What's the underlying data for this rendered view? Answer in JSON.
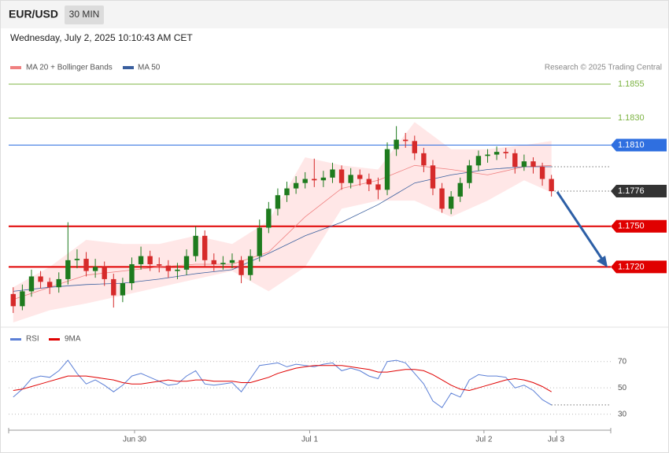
{
  "chart_data": {
    "type": "candlestick",
    "title": "EUR/USD",
    "interval": "30 MIN",
    "subtitle": "Wednesday, July 2, 2025 10:10:43 AM CET",
    "copyright": "Research © 2025 Trading Central",
    "xlim": [
      -0.5,
      65.5
    ],
    "xticks": [
      {
        "value": 13.3,
        "label": "Jun 30"
      },
      {
        "value": 32.5,
        "label": "Jul 1"
      },
      {
        "value": 51.6,
        "label": "Jul 2"
      },
      {
        "value": 59.5,
        "label": "Jul 3"
      }
    ],
    "ylim": [
      1.1679,
      1.1862
    ],
    "up_color": "#1e7b1e",
    "down_color": "#d62a2a",
    "candles": [
      [
        1.17,
        1.1705,
        1.1686,
        1.1691
      ],
      [
        1.1691,
        1.1707,
        1.1688,
        1.1702
      ],
      [
        1.1702,
        1.1718,
        1.1698,
        1.1713
      ],
      [
        1.1713,
        1.1717,
        1.1704,
        1.1709
      ],
      [
        1.1709,
        1.1712,
        1.17,
        1.1705
      ],
      [
        1.1705,
        1.1716,
        1.1701,
        1.1711
      ],
      [
        1.1711,
        1.1753,
        1.1707,
        1.1725
      ],
      [
        1.1725,
        1.1733,
        1.1719,
        1.1726
      ],
      [
        1.1726,
        1.1731,
        1.1713,
        1.1717
      ],
      [
        1.1717,
        1.1726,
        1.1712,
        1.172
      ],
      [
        1.172,
        1.1724,
        1.1706,
        1.1711
      ],
      [
        1.1711,
        1.1715,
        1.169,
        1.1699
      ],
      [
        1.1699,
        1.1712,
        1.1694,
        1.1708
      ],
      [
        1.1708,
        1.1727,
        1.1703,
        1.1722
      ],
      [
        1.1722,
        1.1735,
        1.1718,
        1.1728
      ],
      [
        1.1728,
        1.1732,
        1.1717,
        1.1722
      ],
      [
        1.1722,
        1.1727,
        1.1716,
        1.1721
      ],
      [
        1.1721,
        1.1725,
        1.1712,
        1.1717
      ],
      [
        1.1717,
        1.1723,
        1.1711,
        1.1718
      ],
      [
        1.1718,
        1.1733,
        1.1714,
        1.1728
      ],
      [
        1.1728,
        1.175,
        1.1724,
        1.1743
      ],
      [
        1.1743,
        1.1747,
        1.172,
        1.1725
      ],
      [
        1.1725,
        1.173,
        1.1717,
        1.1722
      ],
      [
        1.1722,
        1.1728,
        1.1718,
        1.1723
      ],
      [
        1.1723,
        1.173,
        1.1719,
        1.1725
      ],
      [
        1.1725,
        1.1728,
        1.1708,
        1.1714
      ],
      [
        1.1714,
        1.1733,
        1.171,
        1.1728
      ],
      [
        1.1728,
        1.1755,
        1.1724,
        1.1749
      ],
      [
        1.1749,
        1.1768,
        1.1745,
        1.1763
      ],
      [
        1.1763,
        1.1778,
        1.1758,
        1.1773
      ],
      [
        1.1773,
        1.1783,
        1.1768,
        1.1778
      ],
      [
        1.1778,
        1.1787,
        1.1774,
        1.1782
      ],
      [
        1.1782,
        1.179,
        1.1778,
        1.1785
      ],
      [
        1.1785,
        1.18,
        1.1779,
        1.1784
      ],
      [
        1.1784,
        1.1791,
        1.1779,
        1.1786
      ],
      [
        1.1786,
        1.1797,
        1.1782,
        1.1792
      ],
      [
        1.1792,
        1.1795,
        1.1777,
        1.1782
      ],
      [
        1.1782,
        1.1793,
        1.1778,
        1.1788
      ],
      [
        1.1788,
        1.1792,
        1.178,
        1.1785
      ],
      [
        1.1785,
        1.1789,
        1.1776,
        1.1781
      ],
      [
        1.1781,
        1.1786,
        1.177,
        1.1777
      ],
      [
        1.1777,
        1.1812,
        1.1773,
        1.1807
      ],
      [
        1.1807,
        1.1824,
        1.1802,
        1.1814
      ],
      [
        1.1814,
        1.1819,
        1.1808,
        1.1813
      ],
      [
        1.1813,
        1.1817,
        1.1799,
        1.1804
      ],
      [
        1.1804,
        1.1808,
        1.179,
        1.1795
      ],
      [
        1.1795,
        1.1799,
        1.1773,
        1.1778
      ],
      [
        1.1778,
        1.1782,
        1.176,
        1.1763
      ],
      [
        1.1763,
        1.1776,
        1.1759,
        1.1772
      ],
      [
        1.1772,
        1.1786,
        1.1768,
        1.1782
      ],
      [
        1.1782,
        1.1799,
        1.1778,
        1.1795
      ],
      [
        1.1795,
        1.1806,
        1.1791,
        1.1802
      ],
      [
        1.1802,
        1.1807,
        1.1797,
        1.1803
      ],
      [
        1.1803,
        1.1809,
        1.1799,
        1.1805
      ],
      [
        1.1805,
        1.1808,
        1.18,
        1.1804
      ],
      [
        1.1804,
        1.1807,
        1.1789,
        1.1794
      ],
      [
        1.1794,
        1.1803,
        1.1791,
        1.1798
      ],
      [
        1.1798,
        1.1801,
        1.1789,
        1.1794
      ],
      [
        1.1794,
        1.1797,
        1.178,
        1.1785
      ],
      [
        1.1785,
        1.1788,
        1.1772,
        1.1776
      ]
    ],
    "overlay_x": [
      0,
      4,
      8,
      12,
      16,
      20,
      24,
      28,
      32,
      36,
      40,
      44,
      48,
      52,
      56,
      59
    ],
    "bands": {
      "name": "MA 20 + Bollinger Bands",
      "color": "#f08080",
      "fill": "rgba(255,170,170,0.28)",
      "ma": [
        1.1696,
        1.1705,
        1.1714,
        1.1717,
        1.172,
        1.1722,
        1.1722,
        1.1731,
        1.1757,
        1.1778,
        1.1784,
        1.1795,
        1.1792,
        1.1788,
        1.1794,
        1.1795
      ],
      "upper": [
        1.1705,
        1.172,
        1.174,
        1.1737,
        1.1737,
        1.1743,
        1.1737,
        1.1754,
        1.1801,
        1.1795,
        1.1792,
        1.1827,
        1.1807,
        1.1807,
        1.181,
        1.1813
      ],
      "lower": [
        1.1679,
        1.1688,
        1.1693,
        1.1699,
        1.1705,
        1.1711,
        1.1717,
        1.1702,
        1.172,
        1.1763,
        1.1769,
        1.1769,
        1.1757,
        1.1769,
        1.1784,
        1.1775
      ]
    },
    "ma50": {
      "name": "MA 50",
      "color": "#3a5f9e",
      "values": [
        1.1702,
        1.1705,
        1.1707,
        1.1708,
        1.1711,
        1.1715,
        1.1718,
        1.173,
        1.1743,
        1.1753,
        1.1766,
        1.1782,
        1.1788,
        1.1792,
        1.1794,
        1.1794
      ]
    },
    "levels": [
      {
        "value": 1.1855,
        "color": "#7cb342",
        "style": "plain"
      },
      {
        "value": 1.183,
        "label": "1.1830",
        "color": "#7cb342",
        "style": "plain"
      },
      {
        "value": 1.181,
        "label": "1.1810",
        "color": "#2f6fe0",
        "style": "tag"
      },
      {
        "value": 1.1776,
        "color": "#333333",
        "style": "last"
      },
      {
        "value": 1.175,
        "label": "1.1750",
        "color": "#e00000",
        "style": "tag"
      },
      {
        "value": 1.172,
        "label": "1.1720",
        "color": "#e00000",
        "style": "tag"
      }
    ],
    "rsi": {
      "ylim": [
        22,
        80
      ],
      "yticks": [
        70,
        50,
        30
      ],
      "series": [
        {
          "name": "RSI",
          "color": "#5b7fd6",
          "values": [
            43,
            49,
            57,
            59,
            58,
            63,
            71,
            61,
            53,
            56,
            52,
            47,
            52,
            59,
            61,
            58,
            55,
            52,
            53,
            59,
            63,
            53,
            52,
            53,
            54,
            47,
            57,
            67,
            68,
            69,
            66,
            68,
            67,
            66,
            68,
            69,
            63,
            65,
            63,
            59,
            57,
            70,
            71,
            69,
            61,
            53,
            40,
            35,
            46,
            43,
            56,
            60,
            59,
            59,
            58,
            50,
            52,
            48,
            41,
            37
          ]
        },
        {
          "name": "9MA",
          "color": "#e00000",
          "values": [
            48,
            49,
            51,
            53,
            55,
            57,
            59,
            59,
            59,
            58,
            57,
            56,
            54,
            53,
            53,
            54,
            55,
            56,
            55,
            55,
            56,
            56,
            55,
            55,
            55,
            54,
            54,
            56,
            58,
            61,
            63,
            65,
            66,
            67,
            67,
            67,
            67,
            66,
            65,
            64,
            62,
            62,
            63,
            64,
            64,
            63,
            60,
            56,
            52,
            49,
            48,
            50,
            52,
            54,
            56,
            57,
            56,
            54,
            51,
            47
          ]
        }
      ]
    }
  }
}
